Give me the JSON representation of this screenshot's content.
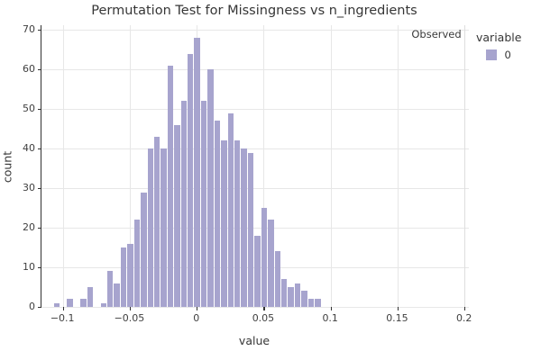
{
  "title": "Permutation Test for Missingness vs n_ingredients",
  "chart_data": {
    "type": "bar",
    "subtype": "histogram",
    "title": "Permutation Test for Missingness vs n_ingredients",
    "xlabel": "value",
    "ylabel": "count",
    "legend_title": "variable",
    "series_name": "0",
    "annotation": "Observed",
    "observed_x": 0.2,
    "bar_color": "#a7a4ce",
    "grid": true,
    "legend_position": "right",
    "bin_width": 0.005,
    "bin_centers": [
      -0.105,
      -0.1,
      -0.095,
      -0.09,
      -0.085,
      -0.08,
      -0.075,
      -0.07,
      -0.065,
      -0.06,
      -0.055,
      -0.05,
      -0.045,
      -0.04,
      -0.035,
      -0.03,
      -0.025,
      -0.02,
      -0.015,
      -0.01,
      -0.005,
      0.0,
      0.005,
      0.01,
      0.015,
      0.02,
      0.025,
      0.03,
      0.035,
      0.04,
      0.045,
      0.05,
      0.055,
      0.06,
      0.065,
      0.07,
      0.075,
      0.08,
      0.085,
      0.09
    ],
    "values": [
      1,
      0,
      2,
      0,
      2,
      5,
      0,
      1,
      9,
      6,
      15,
      16,
      22,
      29,
      40,
      43,
      40,
      61,
      46,
      52,
      64,
      68,
      52,
      60,
      47,
      42,
      49,
      42,
      40,
      39,
      18,
      25,
      22,
      14,
      7,
      5,
      6,
      4,
      2,
      2
    ],
    "x_ticks": [
      -0.1,
      -0.05,
      0,
      0.05,
      0.1,
      0.15,
      0.2
    ],
    "x_tick_labels": [
      "−0.1",
      "−0.05",
      "0",
      "0.05",
      "0.1",
      "0.15",
      "0.2"
    ],
    "y_ticks": [
      0,
      10,
      20,
      30,
      40,
      50,
      60,
      70
    ],
    "xlim": [
      -0.1163,
      0.2029
    ],
    "ylim": [
      0,
      71.2
    ]
  },
  "colors": {
    "bar": "#a7a4ce",
    "grid": "#e7e7e7",
    "observed_line": "#dedede",
    "axis": "#333333",
    "text": "#363636"
  }
}
